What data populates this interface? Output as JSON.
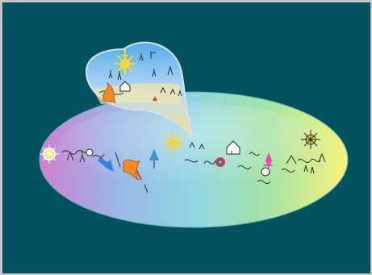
{
  "image": {
    "background_color": "#035260",
    "frame_color": "#c7c7c7",
    "main_ellipse_gradient": [
      "#d07fd3",
      "#9ab7e6",
      "#8fd6e2",
      "#a7e3a5",
      "#f6f37b"
    ],
    "bubble_gradient": [
      "#55a9ea",
      "#bcdcf8",
      "#f2df8a"
    ],
    "art_colors": {
      "ink": "#2a2a2a",
      "sun": "#f4e14a",
      "red": "#d43b3b",
      "orange": "#f08b2a",
      "pink": "#e34ea2",
      "purple": "#7b4bb0",
      "blue": "#2e7dd6",
      "yellow": "#f2e24b"
    }
  }
}
